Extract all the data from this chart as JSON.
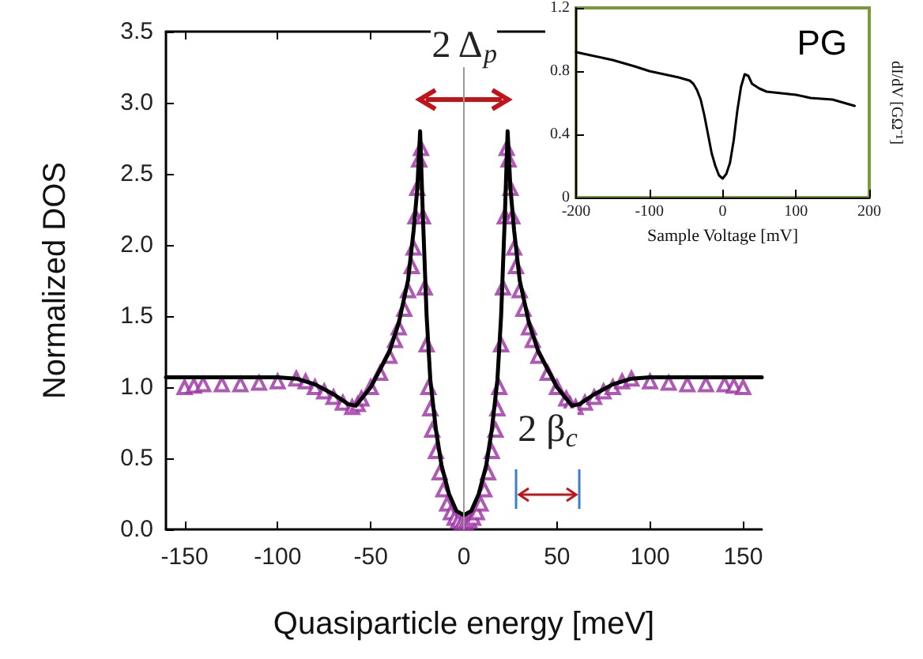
{
  "chart_data": [
    {
      "type": "line",
      "xlabel": "Quasiparticle energy [meV]",
      "ylabel": "Normalized DOS",
      "xlim": [
        -160,
        160
      ],
      "xticks": [
        -150,
        -100,
        -50,
        0,
        50,
        100,
        150
      ],
      "ylim": [
        0,
        3.5
      ],
      "yticks": [
        {
          "value": 0,
          "label": "0.0"
        },
        0.5,
        {
          "value": 1,
          "label": "1.0"
        },
        1.5,
        {
          "value": 2,
          "label": "2.0"
        },
        2.5,
        {
          "value": 3,
          "label": "3.0"
        },
        3.5
      ],
      "grid": false,
      "annotations": [
        {
          "text": "2 Δ$_{p}$",
          "x": 0,
          "y": 3.4
        },
        {
          "text": "2 β$_{c}$",
          "x": 45,
          "y": 0.7
        }
      ],
      "ref_lines": [
        {
          "axis": "x",
          "value": 0,
          "color": "#9a9a9a"
        }
      ],
      "series": [
        {
          "type": "scatter",
          "color": "#9b2fa3",
          "marker": "triangle",
          "x": [
            -150,
            -145,
            -140,
            -130,
            -120,
            -110,
            -100,
            -90,
            -85,
            -80,
            -75,
            -70,
            -65,
            -60,
            -57,
            -55,
            -50,
            -45,
            -40,
            -37,
            -35,
            -32,
            -30,
            -28,
            -27,
            -26,
            -25,
            -24,
            -23,
            -22,
            -21,
            -20,
            -19,
            -18,
            -17,
            -15,
            -13,
            -11,
            -9,
            -7,
            -5,
            -3,
            -1,
            1,
            3,
            5,
            7,
            9,
            11,
            13,
            15,
            17,
            18,
            19,
            20,
            21,
            22,
            23,
            24,
            25,
            26,
            27,
            28,
            30,
            32,
            35,
            37,
            40,
            45,
            50,
            55,
            57,
            60,
            65,
            70,
            75,
            80,
            85,
            90,
            100,
            110,
            120,
            130,
            140,
            145,
            150
          ],
          "values": [
            1.0,
            1.01,
            1.02,
            1.02,
            1.02,
            1.03,
            1.04,
            1.06,
            1.04,
            1.0,
            0.97,
            0.93,
            0.89,
            0.86,
            0.88,
            0.92,
            1.0,
            1.1,
            1.22,
            1.33,
            1.42,
            1.55,
            1.68,
            1.85,
            1.98,
            2.2,
            2.4,
            2.6,
            2.68,
            2.2,
            1.7,
            1.3,
            1.0,
            0.85,
            0.7,
            0.55,
            0.4,
            0.28,
            0.18,
            0.12,
            0.08,
            0.06,
            0.05,
            0.05,
            0.06,
            0.08,
            0.12,
            0.18,
            0.28,
            0.4,
            0.55,
            0.7,
            0.85,
            1.0,
            1.3,
            1.7,
            2.2,
            2.68,
            2.6,
            2.4,
            2.2,
            1.98,
            1.85,
            1.68,
            1.55,
            1.42,
            1.33,
            1.22,
            1.1,
            1.0,
            0.92,
            0.88,
            0.86,
            0.89,
            0.93,
            0.97,
            1.0,
            1.04,
            1.06,
            1.04,
            1.03,
            1.02,
            1.02,
            1.02,
            1.01,
            1.0
          ]
        },
        {
          "color": "#000000",
          "marker": "none",
          "line_style": "solid",
          "x": [
            -160,
            -100,
            -90,
            -80,
            -70,
            -62,
            -58,
            -50,
            -40,
            -35,
            -30,
            -27,
            -25,
            -23.5,
            -22,
            -20,
            -18,
            -15,
            -12,
            -8,
            -4,
            0,
            4,
            8,
            12,
            15,
            18,
            20,
            22,
            23.5,
            25,
            27,
            30,
            35,
            40,
            50,
            58,
            62,
            70,
            80,
            90,
            100,
            160
          ],
          "values": [
            1.07,
            1.07,
            1.06,
            1.02,
            0.95,
            0.88,
            0.87,
            1.0,
            1.25,
            1.45,
            1.75,
            2.1,
            2.4,
            2.8,
            2.2,
            1.5,
            1.05,
            0.7,
            0.45,
            0.25,
            0.13,
            0.1,
            0.13,
            0.25,
            0.45,
            0.7,
            1.05,
            1.5,
            2.2,
            2.8,
            2.4,
            2.1,
            1.75,
            1.45,
            1.25,
            1.0,
            0.87,
            0.88,
            0.95,
            1.02,
            1.06,
            1.07,
            1.07
          ]
        }
      ]
    },
    {
      "type": "line",
      "xlabel": "Sample Voltage [mV]",
      "ylabel": "dI/dV [GΩ⁻¹]",
      "xlim": [
        -200,
        200
      ],
      "xticks": [
        -200,
        -100,
        0,
        100,
        200
      ],
      "ylim": [
        0,
        1.2
      ],
      "yticks": [
        0,
        0.4,
        0.8,
        1.2
      ],
      "grid": false,
      "annotations": [
        "PG"
      ],
      "series": [
        {
          "color": "#000000",
          "marker": "none",
          "line_style": "solid",
          "x": [
            -200,
            -180,
            -150,
            -120,
            -100,
            -80,
            -60,
            -45,
            -40,
            -35,
            -30,
            -25,
            -20,
            -15,
            -10,
            -5,
            0,
            5,
            10,
            15,
            20,
            25,
            30,
            35,
            40,
            50,
            60,
            80,
            100,
            120,
            150,
            180
          ],
          "values": [
            0.92,
            0.9,
            0.87,
            0.83,
            0.8,
            0.78,
            0.76,
            0.74,
            0.72,
            0.68,
            0.62,
            0.52,
            0.4,
            0.28,
            0.2,
            0.14,
            0.12,
            0.15,
            0.22,
            0.36,
            0.55,
            0.7,
            0.78,
            0.77,
            0.72,
            0.69,
            0.67,
            0.66,
            0.65,
            0.63,
            0.62,
            0.58
          ]
        }
      ]
    }
  ]
}
